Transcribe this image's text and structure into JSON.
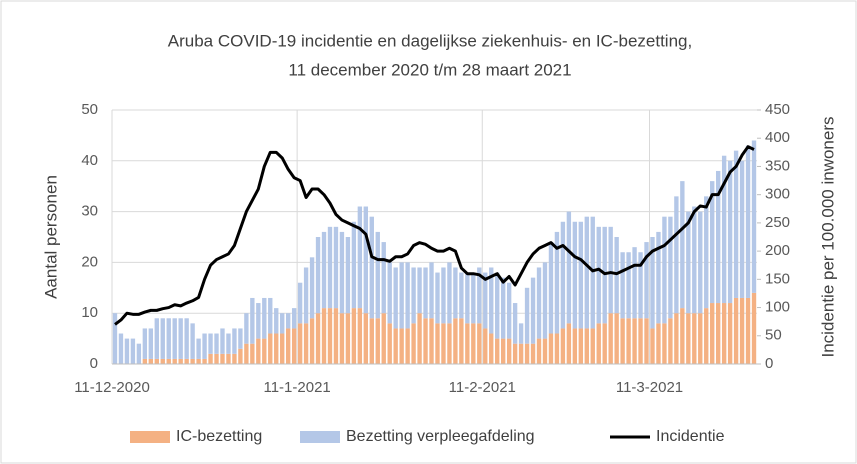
{
  "chart_data": {
    "type": "bar+line",
    "title": "Aruba COVID-19 incidentie en dagelijkse ziekenhuis- en IC-bezetting,",
    "subtitle": "11 december 2020 t/m 28 maart 2021",
    "ylabel": "Aantal personen",
    "y2label": "Incidentie per 100.000 inwoners",
    "categories": [
      "11-12-2020",
      null,
      null,
      null,
      null,
      null,
      null,
      null,
      null,
      null,
      null,
      null,
      null,
      null,
      null,
      null,
      null,
      null,
      null,
      null,
      null,
      null,
      null,
      null,
      null,
      null,
      null,
      null,
      null,
      null,
      null,
      "11-1-2021",
      null,
      null,
      null,
      null,
      null,
      null,
      null,
      null,
      null,
      null,
      null,
      null,
      null,
      null,
      null,
      null,
      null,
      null,
      null,
      null,
      null,
      null,
      null,
      null,
      null,
      null,
      null,
      null,
      null,
      null,
      "11-2-2021",
      null,
      null,
      null,
      null,
      null,
      null,
      null,
      null,
      null,
      null,
      null,
      null,
      null,
      null,
      null,
      null,
      null,
      null,
      null,
      null,
      null,
      null,
      null,
      null,
      null,
      null,
      null,
      "11-3-2021",
      null,
      null,
      null,
      null,
      null,
      null,
      null,
      null,
      null,
      null,
      null,
      null,
      null,
      null,
      null,
      null,
      null
    ],
    "series": [
      {
        "name": "IC-bezetting",
        "color": "#f4b183",
        "values": [
          0,
          0,
          0,
          0,
          0,
          1,
          1,
          1,
          1,
          1,
          1,
          1,
          1,
          1,
          1,
          1,
          2,
          2,
          2,
          2,
          2,
          3,
          4,
          4,
          5,
          5,
          6,
          6,
          6,
          7,
          7,
          8,
          8,
          9,
          10,
          11,
          11,
          11,
          10,
          10,
          11,
          11,
          10,
          9,
          9,
          10,
          8,
          7,
          7,
          7,
          8,
          10,
          9,
          9,
          8,
          8,
          8,
          9,
          9,
          8,
          8,
          8,
          7,
          6,
          5,
          5,
          5,
          4,
          4,
          4,
          4,
          5,
          5,
          6,
          6,
          7,
          8,
          7,
          7,
          7,
          7,
          8,
          8,
          10,
          10,
          9,
          9,
          9,
          9,
          9,
          7,
          8,
          8,
          9,
          10,
          11,
          10,
          10,
          10,
          11,
          12,
          12,
          12,
          12,
          13,
          13,
          13,
          14
        ]
      },
      {
        "name": "Bezetting verpleegafdeling",
        "color": "#b4c7e7",
        "values": [
          10,
          6,
          5,
          5,
          4,
          6,
          6,
          8,
          8,
          8,
          8,
          8,
          8,
          7,
          4,
          5,
          4,
          4,
          5,
          4,
          5,
          4,
          6,
          9,
          7,
          8,
          7,
          5,
          4,
          3,
          4,
          8,
          11,
          12,
          15,
          15,
          16,
          16,
          16,
          15,
          17,
          20,
          21,
          20,
          17,
          14,
          12,
          12,
          13,
          13,
          11,
          9,
          10,
          11,
          10,
          11,
          12,
          10,
          9,
          10,
          10,
          11,
          11,
          13,
          13,
          12,
          11,
          8,
          4,
          11,
          13,
          14,
          15,
          18,
          20,
          21,
          22,
          21,
          21,
          22,
          22,
          19,
          19,
          17,
          15,
          13,
          13,
          14,
          13,
          15,
          18,
          18,
          21,
          20,
          23,
          25,
          20,
          21,
          20,
          22,
          24,
          26,
          29,
          28,
          29,
          27,
          30,
          30
        ]
      },
      {
        "name": "Incidentie",
        "color": "#000000",
        "type": "line",
        "axis": "y2",
        "values": [
          70,
          78,
          90,
          88,
          88,
          92,
          95,
          95,
          98,
          100,
          105,
          103,
          108,
          112,
          118,
          150,
          175,
          185,
          190,
          195,
          210,
          240,
          270,
          290,
          310,
          350,
          375,
          375,
          365,
          345,
          330,
          325,
          295,
          310,
          310,
          300,
          285,
          265,
          255,
          250,
          245,
          240,
          230,
          190,
          185,
          185,
          182,
          190,
          190,
          195,
          210,
          215,
          212,
          205,
          200,
          200,
          205,
          200,
          170,
          160,
          160,
          158,
          150,
          155,
          160,
          145,
          155,
          140,
          160,
          180,
          195,
          205,
          210,
          215,
          205,
          210,
          200,
          190,
          185,
          175,
          165,
          168,
          160,
          162,
          160,
          165,
          170,
          175,
          175,
          190,
          200,
          205,
          210,
          220,
          230,
          240,
          250,
          270,
          280,
          278,
          300,
          300,
          320,
          340,
          350,
          370,
          385,
          380
        ]
      }
    ],
    "ylim": [
      0,
      50
    ],
    "yticks": [
      0,
      10,
      20,
      30,
      40,
      50
    ],
    "y2lim": [
      0,
      450
    ],
    "y2ticks": [
      0,
      50,
      100,
      150,
      200,
      250,
      300,
      350,
      400,
      450
    ],
    "grid": true,
    "legend": "bottom"
  }
}
